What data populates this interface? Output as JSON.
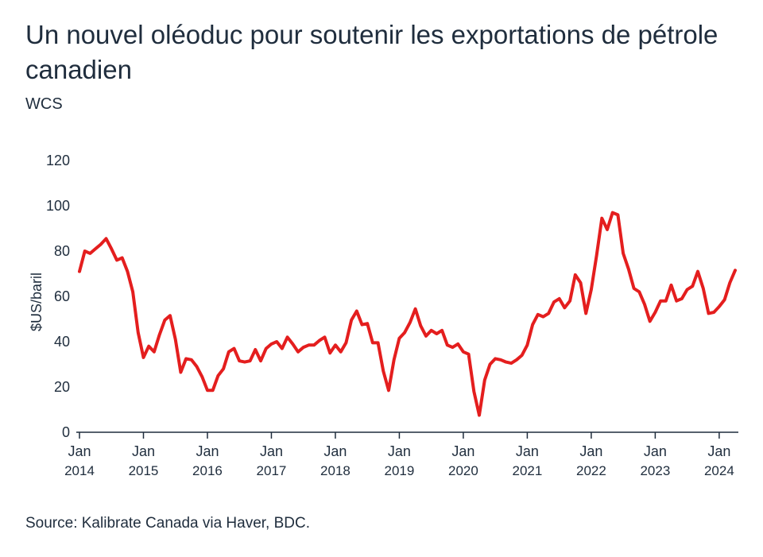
{
  "header": {
    "title": "Un nouvel oléoduc pour soutenir les exportations de pétrole canadien",
    "subtitle": "WCS"
  },
  "footer": {
    "source": "Source: Kalibrate Canada via Haver, BDC."
  },
  "chart_data": {
    "type": "line",
    "title": "Un nouvel oléoduc pour soutenir les exportations de pétrole canadien",
    "subtitle": "WCS",
    "xlabel": "",
    "ylabel": "$US/baril",
    "ylim": [
      0,
      120
    ],
    "yticks": [
      0,
      20,
      40,
      60,
      80,
      100,
      120
    ],
    "xlim": [
      "2014-01",
      "2024-04"
    ],
    "xticks": [
      {
        "month": "Jan",
        "year": "2014",
        "date": "2014-01"
      },
      {
        "month": "Jan",
        "year": "2015",
        "date": "2015-01"
      },
      {
        "month": "Jan",
        "year": "2016",
        "date": "2016-01"
      },
      {
        "month": "Jan",
        "year": "2017",
        "date": "2017-01"
      },
      {
        "month": "Jan",
        "year": "2018",
        "date": "2018-01"
      },
      {
        "month": "Jan",
        "year": "2019",
        "date": "2019-01"
      },
      {
        "month": "Jan",
        "year": "2020",
        "date": "2020-01"
      },
      {
        "month": "Jan",
        "year": "2021",
        "date": "2021-01"
      },
      {
        "month": "Jan",
        "year": "2022",
        "date": "2022-01"
      },
      {
        "month": "Jan",
        "year": "2023",
        "date": "2023-01"
      },
      {
        "month": "Jan",
        "year": "2024",
        "date": "2024-01"
      }
    ],
    "grid": false,
    "legend": "none",
    "series": [
      {
        "color": "#e41e1e",
        "x": [
          "2014-01",
          "2014-02",
          "2014-03",
          "2014-04",
          "2014-05",
          "2014-06",
          "2014-07",
          "2014-08",
          "2014-09",
          "2014-10",
          "2014-11",
          "2014-12",
          "2015-01",
          "2015-02",
          "2015-03",
          "2015-04",
          "2015-05",
          "2015-06",
          "2015-07",
          "2015-08",
          "2015-09",
          "2015-10",
          "2015-11",
          "2015-12",
          "2016-01",
          "2016-02",
          "2016-03",
          "2016-04",
          "2016-05",
          "2016-06",
          "2016-07",
          "2016-08",
          "2016-09",
          "2016-10",
          "2016-11",
          "2016-12",
          "2017-01",
          "2017-02",
          "2017-03",
          "2017-04",
          "2017-05",
          "2017-06",
          "2017-07",
          "2017-08",
          "2017-09",
          "2017-10",
          "2017-11",
          "2017-12",
          "2018-01",
          "2018-02",
          "2018-03",
          "2018-04",
          "2018-05",
          "2018-06",
          "2018-07",
          "2018-08",
          "2018-09",
          "2018-10",
          "2018-11",
          "2018-12",
          "2019-01",
          "2019-02",
          "2019-03",
          "2019-04",
          "2019-05",
          "2019-06",
          "2019-07",
          "2019-08",
          "2019-09",
          "2019-10",
          "2019-11",
          "2019-12",
          "2020-01",
          "2020-02",
          "2020-03",
          "2020-04",
          "2020-05",
          "2020-06",
          "2020-07",
          "2020-08",
          "2020-09",
          "2020-10",
          "2020-11",
          "2020-12",
          "2021-01",
          "2021-02",
          "2021-03",
          "2021-04",
          "2021-05",
          "2021-06",
          "2021-07",
          "2021-08",
          "2021-09",
          "2021-10",
          "2021-11",
          "2021-12",
          "2022-01",
          "2022-02",
          "2022-03",
          "2022-04",
          "2022-05",
          "2022-06",
          "2022-07",
          "2022-08",
          "2022-09",
          "2022-10",
          "2022-11",
          "2022-12",
          "2023-01",
          "2023-02",
          "2023-03",
          "2023-04",
          "2023-05",
          "2023-06",
          "2023-07",
          "2023-08",
          "2023-09",
          "2023-10",
          "2023-11",
          "2023-12",
          "2024-01",
          "2024-02",
          "2024-03",
          "2024-04"
        ],
        "values": [
          71,
          80,
          79,
          81,
          83,
          85.5,
          81,
          76,
          77,
          71,
          62,
          44,
          33,
          38,
          35.5,
          43,
          49.5,
          51.5,
          41,
          26.5,
          32.5,
          32,
          29,
          24.5,
          18.5,
          18.5,
          25,
          28,
          35.5,
          37,
          31.5,
          31,
          31.5,
          36.5,
          31.5,
          37,
          39,
          40,
          37,
          42,
          39,
          35.5,
          37.5,
          38.5,
          38.5,
          40.5,
          42,
          35,
          38.5,
          35.5,
          39.5,
          49.5,
          53.5,
          47.5,
          48,
          39.5,
          39.5,
          27,
          18.5,
          32,
          41.5,
          44,
          48.5,
          54.5,
          47,
          42.5,
          45,
          43.5,
          45,
          38.5,
          37.5,
          39,
          35.5,
          34.5,
          18,
          7.5,
          23,
          30,
          32.5,
          32,
          31,
          30.5,
          32,
          34,
          38.5,
          47.5,
          52,
          51,
          52.5,
          57.5,
          59,
          55,
          58,
          69.5,
          66,
          52.5,
          63,
          78,
          94.5,
          89.5,
          97,
          96,
          79,
          72,
          63.5,
          62,
          56.5,
          49,
          53,
          58,
          58,
          65,
          58,
          59,
          63,
          64.5,
          71,
          63.5,
          52.5,
          53,
          55.5,
          58.5,
          66,
          71.5
        ]
      }
    ]
  }
}
